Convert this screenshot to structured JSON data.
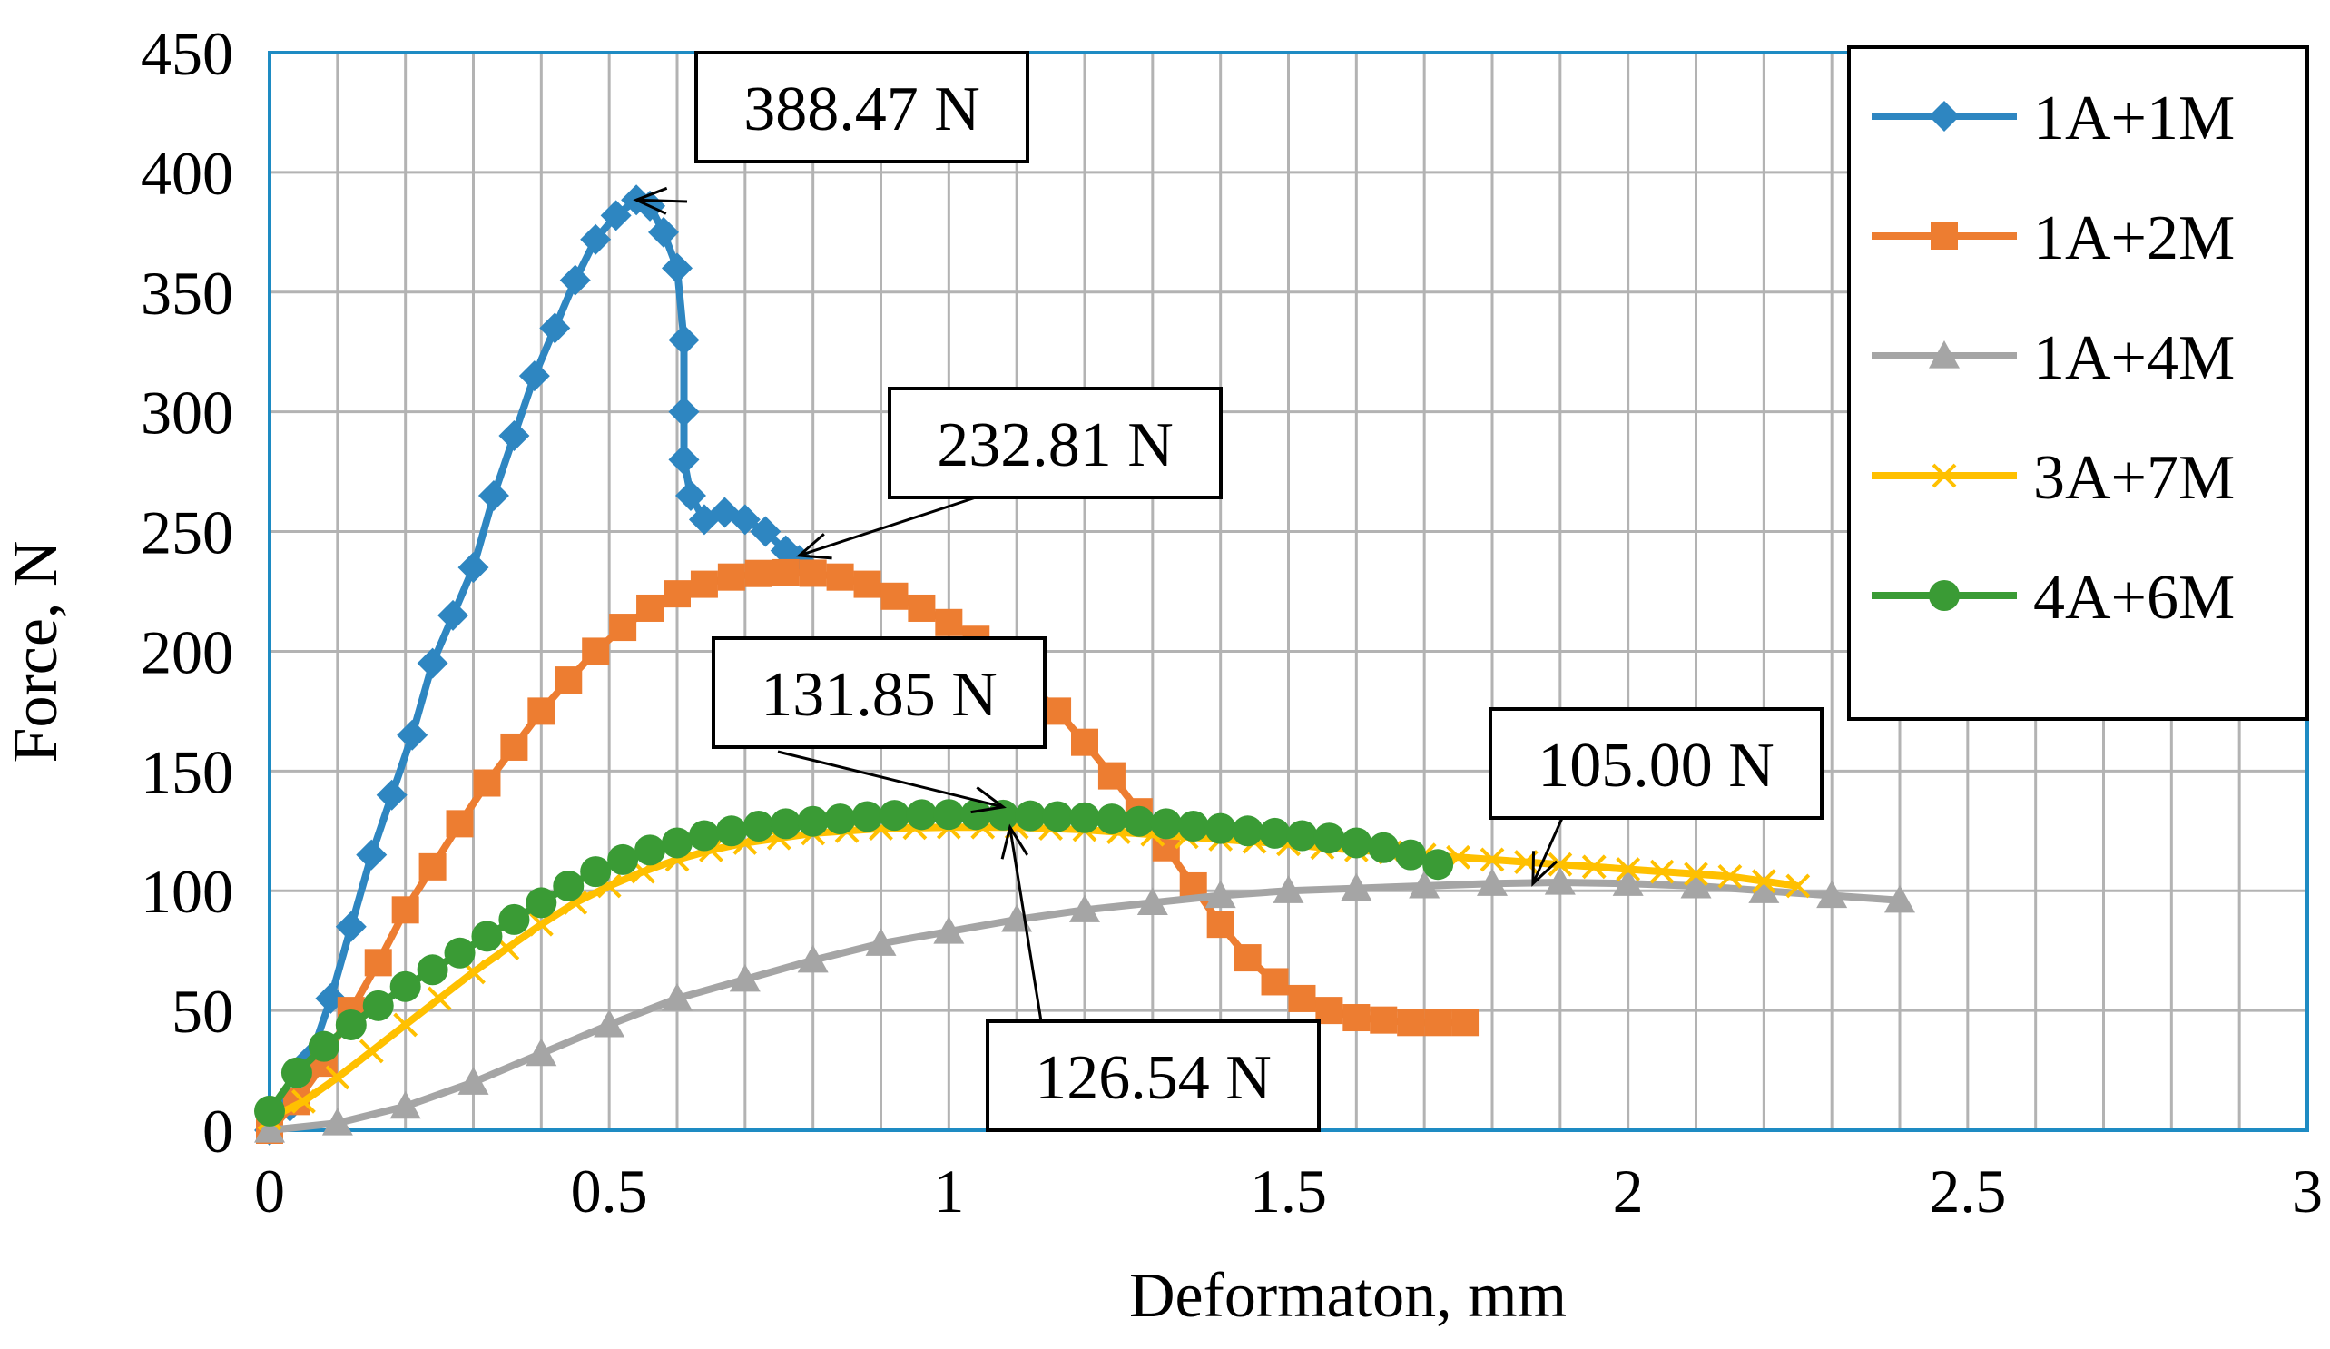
{
  "chart_data": {
    "type": "line",
    "xlabel": "Deformaton, mm",
    "ylabel": "Force, N",
    "xlim": [
      0,
      3
    ],
    "ylim": [
      0,
      450
    ],
    "x_ticks": [
      0,
      0.5,
      1,
      1.5,
      2,
      2.5,
      3
    ],
    "x_tick_labels": [
      "0",
      "0.5",
      "1",
      "1.5",
      "2",
      "2.5",
      "3"
    ],
    "y_ticks": [
      0,
      50,
      100,
      150,
      200,
      250,
      300,
      350,
      400,
      450
    ],
    "y_tick_labels": [
      "0",
      "50",
      "100",
      "150",
      "200",
      "250",
      "300",
      "350",
      "400",
      "450"
    ],
    "minor_grid_x_step": 0.1,
    "grid": true,
    "legend_position": "top-right",
    "series": [
      {
        "name": "1A+1M",
        "color": "#2E86C1",
        "marker": "diamond",
        "points": [
          [
            0.0,
            0
          ],
          [
            0.03,
            10
          ],
          [
            0.06,
            30
          ],
          [
            0.09,
            55
          ],
          [
            0.12,
            85
          ],
          [
            0.15,
            115
          ],
          [
            0.18,
            140
          ],
          [
            0.21,
            165
          ],
          [
            0.24,
            195
          ],
          [
            0.27,
            215
          ],
          [
            0.3,
            235
          ],
          [
            0.33,
            265
          ],
          [
            0.36,
            290
          ],
          [
            0.39,
            315
          ],
          [
            0.42,
            335
          ],
          [
            0.45,
            355
          ],
          [
            0.48,
            372
          ],
          [
            0.51,
            382
          ],
          [
            0.54,
            388.47
          ],
          [
            0.56,
            386
          ],
          [
            0.58,
            375
          ],
          [
            0.6,
            360
          ],
          [
            0.61,
            330
          ],
          [
            0.61,
            300
          ],
          [
            0.61,
            280
          ],
          [
            0.62,
            265
          ],
          [
            0.64,
            255
          ],
          [
            0.67,
            258
          ],
          [
            0.7,
            255
          ],
          [
            0.73,
            250
          ],
          [
            0.76,
            242
          ],
          [
            0.78,
            238
          ]
        ]
      },
      {
        "name": "1A+2M",
        "color": "#ED7D31",
        "marker": "square",
        "points": [
          [
            0.0,
            0
          ],
          [
            0.04,
            12
          ],
          [
            0.08,
            28
          ],
          [
            0.12,
            50
          ],
          [
            0.16,
            70
          ],
          [
            0.2,
            92
          ],
          [
            0.24,
            110
          ],
          [
            0.28,
            128
          ],
          [
            0.32,
            145
          ],
          [
            0.36,
            160
          ],
          [
            0.4,
            175
          ],
          [
            0.44,
            188
          ],
          [
            0.48,
            200
          ],
          [
            0.52,
            210
          ],
          [
            0.56,
            218
          ],
          [
            0.6,
            224
          ],
          [
            0.64,
            228
          ],
          [
            0.68,
            231
          ],
          [
            0.72,
            232.5
          ],
          [
            0.76,
            232.8
          ],
          [
            0.8,
            232.6
          ],
          [
            0.84,
            231
          ],
          [
            0.88,
            228
          ],
          [
            0.92,
            223
          ],
          [
            0.96,
            218
          ],
          [
            1.0,
            212
          ],
          [
            1.04,
            205
          ],
          [
            1.08,
            196
          ],
          [
            1.12,
            186
          ],
          [
            1.16,
            175
          ],
          [
            1.2,
            162
          ],
          [
            1.24,
            148
          ],
          [
            1.28,
            133
          ],
          [
            1.32,
            118
          ],
          [
            1.36,
            102
          ],
          [
            1.4,
            86
          ],
          [
            1.44,
            72
          ],
          [
            1.48,
            62
          ],
          [
            1.52,
            55
          ],
          [
            1.56,
            50
          ],
          [
            1.6,
            47
          ],
          [
            1.64,
            46
          ],
          [
            1.68,
            45
          ],
          [
            1.72,
            45
          ],
          [
            1.76,
            45
          ]
        ]
      },
      {
        "name": "1A+4M",
        "color": "#A5A5A5",
        "marker": "triangle",
        "points": [
          [
            0.0,
            0
          ],
          [
            0.1,
            3
          ],
          [
            0.2,
            10
          ],
          [
            0.3,
            20
          ],
          [
            0.4,
            32
          ],
          [
            0.5,
            44
          ],
          [
            0.6,
            55
          ],
          [
            0.7,
            63
          ],
          [
            0.8,
            71
          ],
          [
            0.9,
            78
          ],
          [
            1.0,
            83
          ],
          [
            1.1,
            88
          ],
          [
            1.2,
            92
          ],
          [
            1.3,
            95
          ],
          [
            1.4,
            98
          ],
          [
            1.5,
            100
          ],
          [
            1.6,
            101
          ],
          [
            1.7,
            102
          ],
          [
            1.8,
            103
          ],
          [
            1.9,
            103.5
          ],
          [
            2.0,
            103
          ],
          [
            2.1,
            102
          ],
          [
            2.2,
            100
          ],
          [
            2.3,
            98
          ],
          [
            2.4,
            96
          ]
        ]
      },
      {
        "name": "3A+7M",
        "color": "#FFC000",
        "marker": "x",
        "points": [
          [
            0.0,
            5
          ],
          [
            0.05,
            12
          ],
          [
            0.1,
            22
          ],
          [
            0.15,
            33
          ],
          [
            0.2,
            44
          ],
          [
            0.25,
            55
          ],
          [
            0.3,
            66
          ],
          [
            0.35,
            76
          ],
          [
            0.4,
            86
          ],
          [
            0.45,
            95
          ],
          [
            0.5,
            102
          ],
          [
            0.55,
            108
          ],
          [
            0.6,
            113
          ],
          [
            0.65,
            117
          ],
          [
            0.7,
            120
          ],
          [
            0.75,
            122
          ],
          [
            0.8,
            124
          ],
          [
            0.85,
            125
          ],
          [
            0.9,
            126
          ],
          [
            0.95,
            126.3
          ],
          [
            1.0,
            126.5
          ],
          [
            1.05,
            126.54
          ],
          [
            1.1,
            126.5
          ],
          [
            1.15,
            126
          ],
          [
            1.2,
            125.5
          ],
          [
            1.25,
            124.5
          ],
          [
            1.3,
            123.5
          ],
          [
            1.35,
            122.5
          ],
          [
            1.4,
            121.5
          ],
          [
            1.45,
            120.5
          ],
          [
            1.5,
            119.5
          ],
          [
            1.55,
            118
          ],
          [
            1.6,
            117
          ],
          [
            1.65,
            116
          ],
          [
            1.7,
            115
          ],
          [
            1.75,
            114
          ],
          [
            1.8,
            113
          ],
          [
            1.85,
            112
          ],
          [
            1.9,
            111
          ],
          [
            1.95,
            110
          ],
          [
            2.0,
            109
          ],
          [
            2.05,
            108
          ],
          [
            2.1,
            107
          ],
          [
            2.15,
            106
          ],
          [
            2.2,
            104
          ],
          [
            2.25,
            102
          ]
        ]
      },
      {
        "name": "4A+6M",
        "color": "#3A9B35",
        "marker": "circle",
        "points": [
          [
            0.0,
            8
          ],
          [
            0.04,
            24
          ],
          [
            0.08,
            35
          ],
          [
            0.12,
            44
          ],
          [
            0.16,
            52
          ],
          [
            0.2,
            60
          ],
          [
            0.24,
            67
          ],
          [
            0.28,
            74
          ],
          [
            0.32,
            81
          ],
          [
            0.36,
            88
          ],
          [
            0.4,
            95
          ],
          [
            0.44,
            102
          ],
          [
            0.48,
            108
          ],
          [
            0.52,
            113
          ],
          [
            0.56,
            117
          ],
          [
            0.6,
            120
          ],
          [
            0.64,
            123
          ],
          [
            0.68,
            125
          ],
          [
            0.72,
            127
          ],
          [
            0.76,
            128
          ],
          [
            0.8,
            129
          ],
          [
            0.84,
            130
          ],
          [
            0.88,
            131
          ],
          [
            0.92,
            131.5
          ],
          [
            0.96,
            131.8
          ],
          [
            1.0,
            131.85
          ],
          [
            1.04,
            131.8
          ],
          [
            1.08,
            131.6
          ],
          [
            1.12,
            131.3
          ],
          [
            1.16,
            131
          ],
          [
            1.2,
            130.5
          ],
          [
            1.24,
            130
          ],
          [
            1.28,
            129
          ],
          [
            1.32,
            128
          ],
          [
            1.36,
            127
          ],
          [
            1.4,
            126
          ],
          [
            1.44,
            125
          ],
          [
            1.48,
            124
          ],
          [
            1.52,
            123
          ],
          [
            1.56,
            122
          ],
          [
            1.6,
            120
          ],
          [
            1.64,
            118
          ],
          [
            1.68,
            115
          ],
          [
            1.72,
            111
          ]
        ]
      }
    ],
    "annotations": [
      {
        "text": "388.47 N",
        "x": 0.54,
        "y": 388.47
      },
      {
        "text": "232.81 N",
        "x": 0.78,
        "y": 240
      },
      {
        "text": "131.85 N",
        "x": 1.08,
        "y": 135
      },
      {
        "text": "126.54 N",
        "x": 1.09,
        "y": 126.5
      },
      {
        "text": "105.00 N",
        "x": 1.86,
        "y": 103
      }
    ]
  }
}
